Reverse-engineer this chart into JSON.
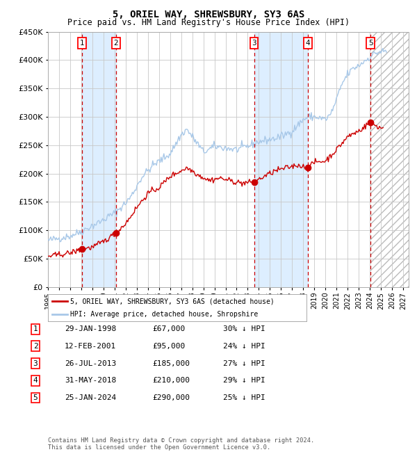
{
  "title": "5, ORIEL WAY, SHREWSBURY, SY3 6AS",
  "subtitle": "Price paid vs. HM Land Registry's House Price Index (HPI)",
  "footer_line1": "Contains HM Land Registry data © Crown copyright and database right 2024.",
  "footer_line2": "This data is licensed under the Open Government Licence v3.0.",
  "legend_line1": "5, ORIEL WAY, SHREWSBURY, SY3 6AS (detached house)",
  "legend_line2": "HPI: Average price, detached house, Shropshire",
  "sales": [
    {
      "num": 1,
      "date": "29-JAN-1998",
      "price": 67000,
      "pct": "30% ↓ HPI",
      "year": 1998.08
    },
    {
      "num": 2,
      "date": "12-FEB-2001",
      "price": 95000,
      "pct": "24% ↓ HPI",
      "year": 2001.12
    },
    {
      "num": 3,
      "date": "26-JUL-2013",
      "price": 185000,
      "pct": "27% ↓ HPI",
      "year": 2013.57
    },
    {
      "num": 4,
      "date": "31-MAY-2018",
      "price": 210000,
      "pct": "29% ↓ HPI",
      "year": 2018.42
    },
    {
      "num": 5,
      "date": "25-JAN-2024",
      "price": 290000,
      "pct": "25% ↓ HPI",
      "year": 2024.07
    }
  ],
  "ylim": [
    0,
    450000
  ],
  "yticks": [
    0,
    50000,
    100000,
    150000,
    200000,
    250000,
    300000,
    350000,
    400000,
    450000
  ],
  "xlim_start": 1995.0,
  "xlim_end": 2027.5,
  "xtick_years": [
    1995,
    1996,
    1997,
    1998,
    1999,
    2000,
    2001,
    2002,
    2003,
    2004,
    2005,
    2006,
    2007,
    2008,
    2009,
    2010,
    2011,
    2012,
    2013,
    2014,
    2015,
    2016,
    2017,
    2018,
    2019,
    2020,
    2021,
    2022,
    2023,
    2024,
    2025,
    2026,
    2027
  ],
  "hpi_color": "#a8c8e8",
  "price_color": "#cc0000",
  "dot_color": "#cc0000",
  "grid_color": "#c8c8c8",
  "bg_color": "#ffffff",
  "shade_color": "#ddeeff",
  "vline_color": "#cc0000"
}
